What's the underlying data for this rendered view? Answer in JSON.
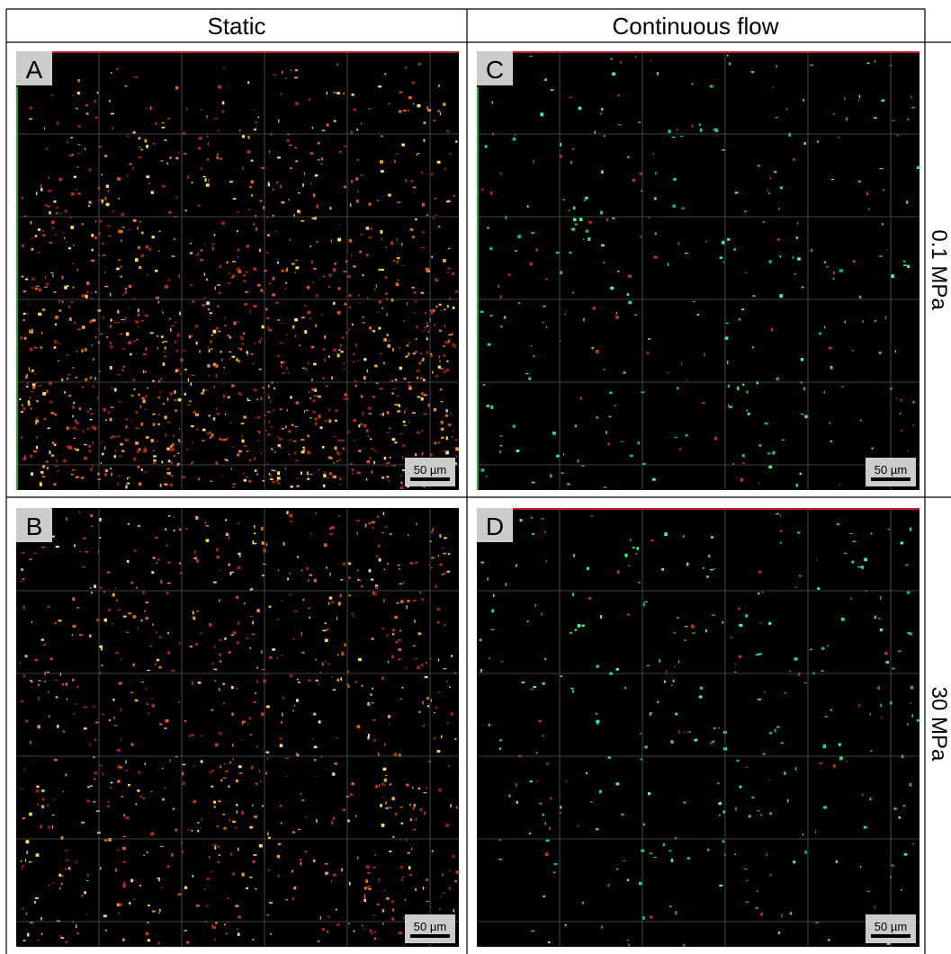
{
  "header": {
    "columns": [
      "Static",
      "Continuous flow"
    ]
  },
  "rows": [
    {
      "label": "0.1 MPa"
    },
    {
      "label": "30 MPa"
    }
  ],
  "panels": [
    {
      "letter": "A",
      "scale_bar": "50 µm"
    },
    {
      "letter": "C",
      "scale_bar": "50 µm"
    },
    {
      "letter": "B",
      "scale_bar": "50 µm"
    },
    {
      "letter": "D",
      "scale_bar": "50 µm"
    }
  ]
}
